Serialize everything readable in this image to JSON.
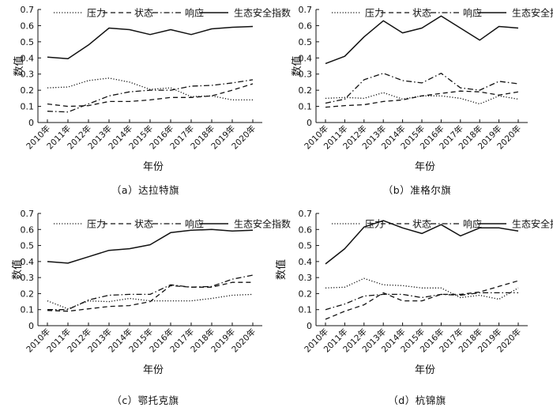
{
  "chart_data": [
    {
      "type": "line",
      "caption": "（a）达拉特旗",
      "xlabel": "年份",
      "ylabel": "数值",
      "ylim": [
        0,
        0.7
      ],
      "yticks": [
        "0",
        "0.1",
        "0.2",
        "0.3",
        "0.4",
        "0.5",
        "0.6",
        "0.7"
      ],
      "categories": [
        "2010年",
        "2011年",
        "2012年",
        "2013年",
        "2014年",
        "2015年",
        "2016年",
        "2017年",
        "2018年",
        "2019年",
        "2020年"
      ],
      "legend_position": "top",
      "series": [
        {
          "name": "压力",
          "style": "dotted",
          "values": [
            0.215,
            0.22,
            0.26,
            0.275,
            0.25,
            0.205,
            0.215,
            0.16,
            0.165,
            0.14,
            0.14
          ]
        },
        {
          "name": "状态",
          "style": "dashed",
          "values": [
            0.115,
            0.1,
            0.105,
            0.13,
            0.13,
            0.14,
            0.155,
            0.155,
            0.165,
            0.2,
            0.24
          ]
        },
        {
          "name": "响应",
          "style": "dashdot",
          "values": [
            0.07,
            0.065,
            0.115,
            0.165,
            0.19,
            0.2,
            0.2,
            0.225,
            0.23,
            0.245,
            0.265
          ]
        },
        {
          "name": "生态安全指数",
          "style": "solid",
          "values": [
            0.405,
            0.395,
            0.48,
            0.585,
            0.575,
            0.545,
            0.575,
            0.545,
            0.58,
            0.59,
            0.595
          ]
        }
      ]
    },
    {
      "type": "line",
      "caption": "（b）准格尔旗",
      "xlabel": "年份",
      "ylabel": "数值",
      "ylim": [
        0,
        0.7
      ],
      "yticks": [
        "0",
        "0.1",
        "0.2",
        "0.3",
        "0.4",
        "0.5",
        "0.6",
        "0.7"
      ],
      "categories": [
        "2010年",
        "2011年",
        "2012年",
        "2013年",
        "2014年",
        "2015年",
        "2016年",
        "2017年",
        "2018年",
        "2019年",
        "2020年"
      ],
      "legend_position": "top",
      "series": [
        {
          "name": "压力",
          "style": "dotted",
          "values": [
            0.15,
            0.155,
            0.15,
            0.185,
            0.145,
            0.165,
            0.165,
            0.15,
            0.115,
            0.165,
            0.145
          ]
        },
        {
          "name": "状态",
          "style": "dashed",
          "values": [
            0.095,
            0.105,
            0.11,
            0.13,
            0.14,
            0.165,
            0.18,
            0.195,
            0.19,
            0.17,
            0.19
          ]
        },
        {
          "name": "响应",
          "style": "dashdot",
          "values": [
            0.12,
            0.145,
            0.265,
            0.305,
            0.26,
            0.245,
            0.305,
            0.215,
            0.2,
            0.255,
            0.24
          ]
        },
        {
          "name": "生态安全指数",
          "style": "solid",
          "values": [
            0.365,
            0.41,
            0.53,
            0.63,
            0.555,
            0.585,
            0.66,
            0.585,
            0.51,
            0.595,
            0.585
          ]
        }
      ]
    },
    {
      "type": "line",
      "caption": "（c）鄂托克旗",
      "xlabel": "年份",
      "ylabel": "数值",
      "ylim": [
        0,
        0.7
      ],
      "yticks": [
        "0",
        "0.1",
        "0.2",
        "0.3",
        "0.4",
        "0.5",
        "0.6",
        "0.7"
      ],
      "categories": [
        "2010年",
        "2011年",
        "2012年",
        "2013年",
        "2014年",
        "2015年",
        "2016年",
        "2017年",
        "2018年",
        "2019年",
        "2020年"
      ],
      "legend_position": "top",
      "series": [
        {
          "name": "压力",
          "style": "dotted",
          "values": [
            0.155,
            0.105,
            0.155,
            0.15,
            0.17,
            0.155,
            0.155,
            0.155,
            0.17,
            0.19,
            0.195
          ]
        },
        {
          "name": "状态",
          "style": "dashed",
          "values": [
            0.095,
            0.09,
            0.105,
            0.12,
            0.125,
            0.15,
            0.25,
            0.24,
            0.24,
            0.27,
            0.27
          ]
        },
        {
          "name": "响应",
          "style": "dashdot",
          "values": [
            0.1,
            0.1,
            0.16,
            0.19,
            0.195,
            0.195,
            0.255,
            0.24,
            0.245,
            0.29,
            0.315
          ]
        },
        {
          "name": "生态安全指数",
          "style": "solid",
          "values": [
            0.4,
            0.39,
            0.43,
            0.47,
            0.48,
            0.505,
            0.58,
            0.595,
            0.6,
            0.59,
            0.595
          ]
        }
      ]
    },
    {
      "type": "line",
      "caption": "（d）杭锦旗",
      "xlabel": "年份",
      "ylabel": "数值",
      "ylim": [
        0,
        0.7
      ],
      "yticks": [
        "0",
        "0.1",
        "0.2",
        "0.3",
        "0.4",
        "0.5",
        "0.6",
        "0.7"
      ],
      "categories": [
        "2010年",
        "2011年",
        "2012年",
        "2013年",
        "2014年",
        "2015年",
        "2016年",
        "2017年",
        "2018年",
        "2019年",
        "2020年"
      ],
      "legend_position": "top",
      "series": [
        {
          "name": "压力",
          "style": "dotted",
          "values": [
            0.235,
            0.24,
            0.295,
            0.255,
            0.25,
            0.235,
            0.235,
            0.175,
            0.19,
            0.165,
            0.235
          ]
        },
        {
          "name": "状态",
          "style": "dashed",
          "values": [
            0.04,
            0.09,
            0.13,
            0.205,
            0.155,
            0.155,
            0.195,
            0.195,
            0.21,
            0.245,
            0.28
          ]
        },
        {
          "name": "响应",
          "style": "dashdot",
          "values": [
            0.1,
            0.135,
            0.185,
            0.195,
            0.195,
            0.175,
            0.195,
            0.19,
            0.205,
            0.205,
            0.205
          ]
        },
        {
          "name": "生态安全指数",
          "style": "solid",
          "values": [
            0.385,
            0.48,
            0.615,
            0.655,
            0.61,
            0.575,
            0.63,
            0.56,
            0.61,
            0.61,
            0.59
          ]
        }
      ]
    }
  ]
}
